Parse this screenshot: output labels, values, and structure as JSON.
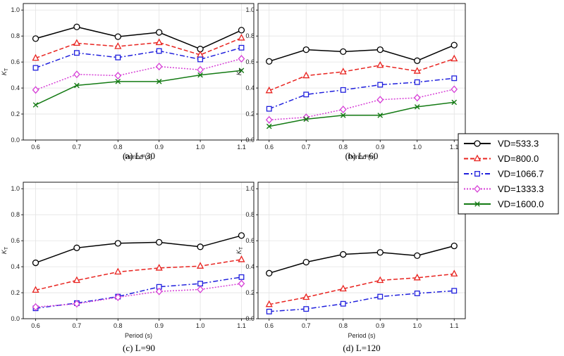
{
  "figure": {
    "legend_placement": "right",
    "styles": [
      {
        "name": "VD=533.3",
        "color": "#000000",
        "marker": "circle",
        "dash": ""
      },
      {
        "name": "VD=800.0",
        "color": "#e8231f",
        "marker": "triangle",
        "dash": "6,3"
      },
      {
        "name": "VD=1066.7",
        "color": "#1f1fdd",
        "marker": "square",
        "dash": "7,3,2,3"
      },
      {
        "name": "VD=1333.3",
        "color": "#d63fd6",
        "marker": "diamond",
        "dash": "2,2"
      },
      {
        "name": "VD=1600.0",
        "color": "#137a13",
        "marker": "x",
        "dash": ""
      }
    ]
  },
  "chart_data": [
    {
      "type": "line",
      "panel": "a",
      "caption": "(a)  L=30",
      "xlabel": "Period (s)",
      "ylabel": "K_T",
      "x": [
        0.6,
        0.7,
        0.8,
        0.9,
        1.0,
        1.1
      ],
      "xlim": [
        0.57,
        1.13
      ],
      "ylim": [
        0,
        1.05
      ],
      "yticks": [
        "0.0",
        "0.2",
        "0.4",
        "0.6",
        "0.8",
        "1.0"
      ],
      "xticks": [
        "0.6",
        "0.7",
        "0.8",
        "0.9",
        "1.0",
        "1.1"
      ],
      "grid": true,
      "series": [
        {
          "name": "VD=533.3",
          "values": [
            0.78,
            0.87,
            0.795,
            0.828,
            0.7,
            0.845
          ]
        },
        {
          "name": "VD=800.0",
          "values": [
            0.63,
            0.745,
            0.72,
            0.75,
            0.655,
            0.785
          ]
        },
        {
          "name": "VD=1066.7",
          "values": [
            0.555,
            0.67,
            0.635,
            0.685,
            0.62,
            0.71
          ]
        },
        {
          "name": "VD=1333.3",
          "values": [
            0.385,
            0.505,
            0.495,
            0.565,
            0.54,
            0.625
          ]
        },
        {
          "name": "VD=1600.0",
          "values": [
            0.27,
            0.42,
            0.45,
            0.45,
            0.5,
            0.535
          ]
        }
      ]
    },
    {
      "type": "line",
      "panel": "b",
      "caption": "(b)  L=60",
      "xlabel": "Period (s)",
      "ylabel": "K_T",
      "x": [
        0.6,
        0.7,
        0.8,
        0.9,
        1.0,
        1.1
      ],
      "xlim": [
        0.57,
        1.13
      ],
      "ylim": [
        0,
        1.05
      ],
      "yticks": [
        "0.0",
        "0.2",
        "0.4",
        "0.6",
        "0.8",
        "1.0"
      ],
      "xticks": [
        "0.6",
        "0.7",
        "0.8",
        "0.9",
        "1.0",
        "1.1"
      ],
      "grid": true,
      "series": [
        {
          "name": "VD=533.3",
          "values": [
            0.605,
            0.695,
            0.68,
            0.695,
            0.61,
            0.73
          ]
        },
        {
          "name": "VD=800.0",
          "values": [
            0.38,
            0.495,
            0.525,
            0.575,
            0.53,
            0.625
          ]
        },
        {
          "name": "VD=1066.7",
          "values": [
            0.24,
            0.35,
            0.385,
            0.425,
            0.445,
            0.475
          ]
        },
        {
          "name": "VD=1333.3",
          "values": [
            0.155,
            0.175,
            0.235,
            0.31,
            0.325,
            0.39
          ]
        },
        {
          "name": "VD=1600.0",
          "values": [
            0.105,
            0.16,
            0.19,
            0.19,
            0.255,
            0.29
          ]
        }
      ]
    },
    {
      "type": "line",
      "panel": "c",
      "caption": "(c)  L=90",
      "xlabel": "Period (s)",
      "ylabel": "K_T",
      "x": [
        0.6,
        0.7,
        0.8,
        0.9,
        1.0,
        1.1
      ],
      "xlim": [
        0.57,
        1.13
      ],
      "ylim": [
        0,
        1.05
      ],
      "yticks": [
        "0.0",
        "0.2",
        "0.4",
        "0.6",
        "0.8",
        "1.0"
      ],
      "xticks": [
        "0.6",
        "0.7",
        "0.8",
        "0.9",
        "1.0",
        "1.1"
      ],
      "grid": true,
      "series": [
        {
          "name": "VD=533.3",
          "values": [
            0.43,
            0.545,
            0.58,
            0.588,
            0.553,
            0.64
          ]
        },
        {
          "name": "VD=800.0",
          "values": [
            0.22,
            0.295,
            0.36,
            0.39,
            0.405,
            0.455
          ]
        },
        {
          "name": "VD=1066.7",
          "values": [
            0.08,
            0.12,
            0.17,
            0.245,
            0.27,
            0.32
          ]
        },
        {
          "name": "VD=1333.3",
          "values": [
            0.09,
            0.115,
            0.165,
            0.21,
            0.225,
            0.27
          ]
        }
      ]
    },
    {
      "type": "line",
      "panel": "d",
      "caption": "(d)  L=120",
      "xlabel": "Period (s)",
      "ylabel": "K_T",
      "x": [
        0.6,
        0.7,
        0.8,
        0.9,
        1.0,
        1.1
      ],
      "xlim": [
        0.57,
        1.13
      ],
      "ylim": [
        0,
        1.05
      ],
      "yticks": [
        "0.0",
        "0.2",
        "0.4",
        "0.6",
        "0.8",
        "1.0"
      ],
      "xticks": [
        "0.6",
        "0.7",
        "0.8",
        "0.9",
        "1.0",
        "1.1"
      ],
      "grid": true,
      "series": [
        {
          "name": "VD=533.3",
          "values": [
            0.35,
            0.435,
            0.495,
            0.51,
            0.485,
            0.56
          ]
        },
        {
          "name": "VD=800.0",
          "values": [
            0.11,
            0.165,
            0.23,
            0.295,
            0.315,
            0.345
          ]
        },
        {
          "name": "VD=1066.7",
          "values": [
            0.055,
            0.075,
            0.115,
            0.17,
            0.195,
            0.215
          ]
        }
      ]
    }
  ]
}
